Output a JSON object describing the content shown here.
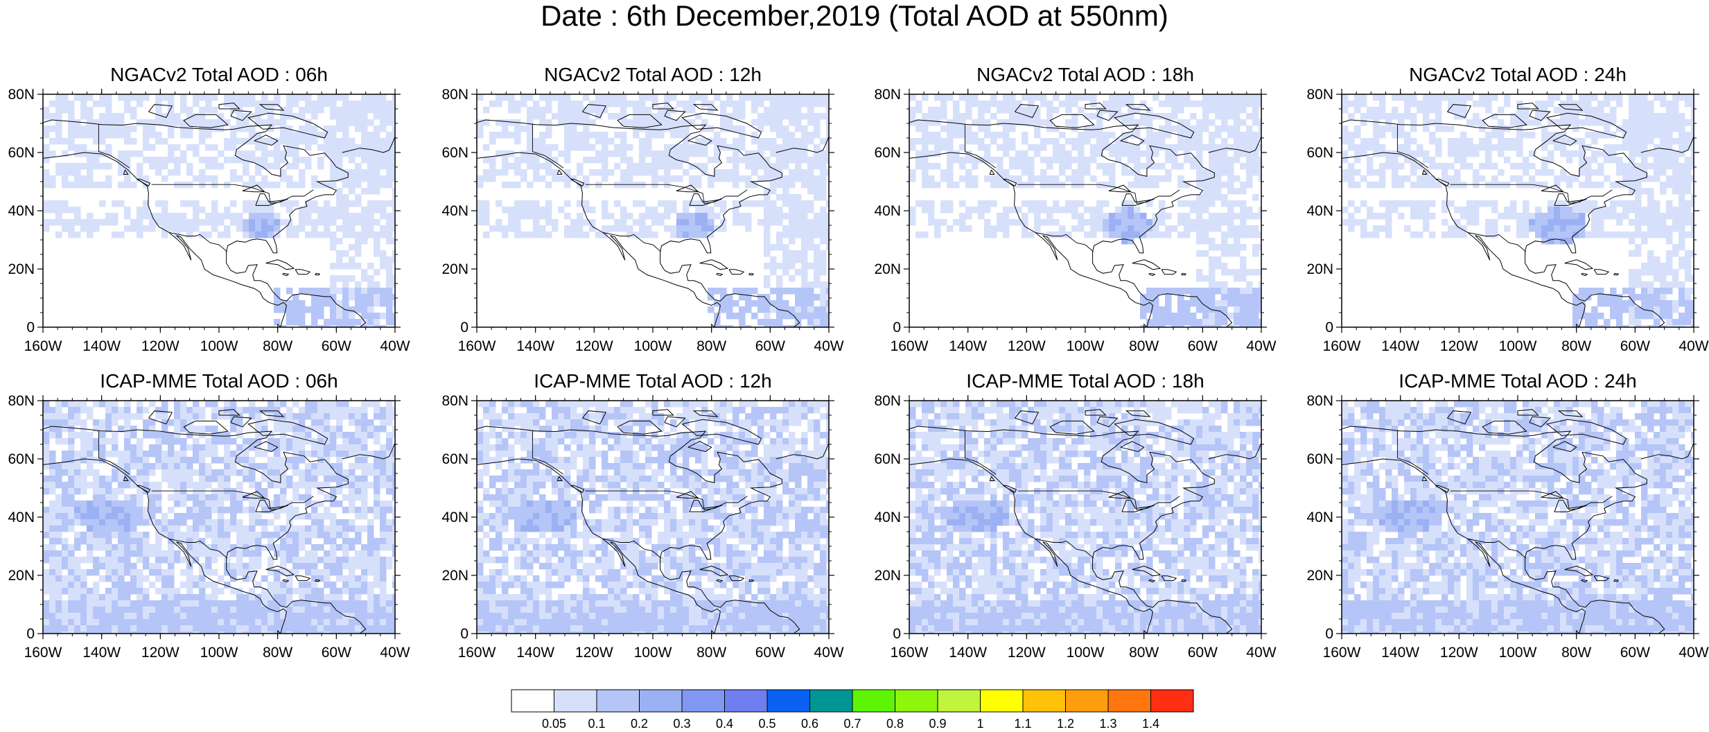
{
  "figure": {
    "title": "Date : 6th December,2019 (Total AOD at 550nm)"
  },
  "axes": {
    "lat_ticks": [
      "80N",
      "60N",
      "40N",
      "20N",
      "0"
    ],
    "lon_ticks": [
      "160W",
      "140W",
      "120W",
      "100W",
      "80W",
      "60W",
      "40W"
    ]
  },
  "panels": [
    {
      "title": "NGACv2 Total AOD : 06h",
      "model": "NGACv2",
      "lead_hour": "06h"
    },
    {
      "title": "NGACv2 Total AOD : 12h",
      "model": "NGACv2",
      "lead_hour": "12h"
    },
    {
      "title": "NGACv2 Total AOD : 18h",
      "model": "NGACv2",
      "lead_hour": "18h"
    },
    {
      "title": "NGACv2 Total AOD : 24h",
      "model": "NGACv2",
      "lead_hour": "24h"
    },
    {
      "title": "ICAP-MME Total AOD : 06h",
      "model": "ICAP-MME",
      "lead_hour": "06h"
    },
    {
      "title": "ICAP-MME Total AOD : 12h",
      "model": "ICAP-MME",
      "lead_hour": "12h"
    },
    {
      "title": "ICAP-MME Total AOD : 18h",
      "model": "ICAP-MME",
      "lead_hour": "18h"
    },
    {
      "title": "ICAP-MME Total AOD : 24h",
      "model": "ICAP-MME",
      "lead_hour": "24h"
    }
  ],
  "colorbar": {
    "labels": [
      "0.05",
      "0.1",
      "0.2",
      "0.3",
      "0.4",
      "0.5",
      "0.6",
      "0.7",
      "0.8",
      "0.9",
      "1",
      "1.1",
      "1.2",
      "1.3",
      "1.4"
    ],
    "colors": [
      "#ffffff",
      "#d7e0fb",
      "#b5c5f7",
      "#9bb1f4",
      "#8098f1",
      "#6f7ff0",
      "#0b61f2",
      "#009694",
      "#5df505",
      "#8ef50c",
      "#c0f53e",
      "#ffff00",
      "#ffc10a",
      "#ff9e0c",
      "#ff760e",
      "#ff2f14"
    ]
  }
}
